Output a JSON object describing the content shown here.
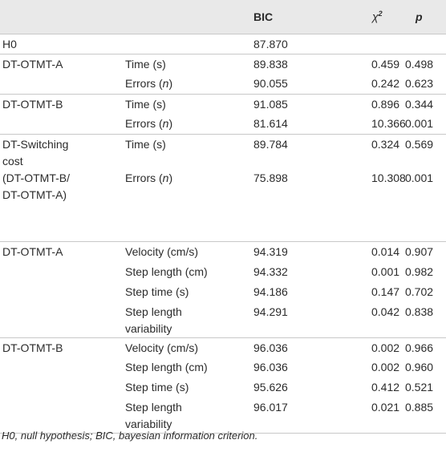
{
  "header": {
    "col1": "",
    "col2": "",
    "bic": "BIC",
    "chi": "χ",
    "chi_sup": "2",
    "p": "p"
  },
  "rows": [
    {
      "label": "H0",
      "measure": "",
      "bic": "87.870",
      "chi2": "",
      "p": ""
    },
    {
      "label": "DT-OTMT-A",
      "measure": "Time (s)",
      "bic": "89.838",
      "chi2": "0.459",
      "p": "0.498"
    },
    {
      "label": "",
      "measure": "Errors (n)",
      "bic": "90.055",
      "chi2": "0.242",
      "p": "0.623"
    },
    {
      "label": "DT-OTMT-B",
      "measure": "Time (s)",
      "bic": "91.085",
      "chi2": "0.896",
      "p": "0.344"
    },
    {
      "label": "",
      "measure": "Errors (n)",
      "bic": "81.614",
      "chi2": "10.366",
      "p": "0.001"
    },
    {
      "label": "DT-Switching cost (DT-OTMT-B/ DT-OTMT-A)",
      "measure": "Time (s)",
      "bic": "89.784",
      "chi2": "0.324",
      "p": "0.569"
    },
    {
      "label": "",
      "measure": "Errors (n)",
      "bic": "75.898",
      "chi2": "10.308",
      "p": "0.001"
    },
    {
      "label": "DT-OTMT-A",
      "measure": "Velocity (cm/s)",
      "bic": "94.319",
      "chi2": "0.014",
      "p": "0.907"
    },
    {
      "label": "",
      "measure": "Step length (cm)",
      "bic": "94.332",
      "chi2": "0.001",
      "p": "0.982"
    },
    {
      "label": "",
      "measure": "Step time (s)",
      "bic": "94.186",
      "chi2": "0.147",
      "p": "0.702"
    },
    {
      "label": "",
      "measure": "Step length variability",
      "bic": "94.291",
      "chi2": "0.042",
      "p": "0.838"
    },
    {
      "label": "DT-OTMT-B",
      "measure": "Velocity (cm/s)",
      "bic": "96.036",
      "chi2": "0.002",
      "p": "0.966"
    },
    {
      "label": "",
      "measure": "Step length (cm)",
      "bic": "96.036",
      "chi2": "0.002",
      "p": "0.960"
    },
    {
      "label": "",
      "measure": "Step time (s)",
      "bic": "95.626",
      "chi2": "0.412",
      "p": "0.521"
    },
    {
      "label": "",
      "measure": "Step length variability",
      "bic": "96.017",
      "chi2": "0.021",
      "p": "0.885"
    }
  ],
  "measure_parts": {
    "errors_prefix": "Errors (",
    "errors_n": "n",
    "errors_suffix": ")"
  },
  "switching_label_lines": [
    "DT-Switching",
    "cost",
    "(DT-OTMT-B/",
    "DT-OTMT-A)"
  ],
  "variability_lines": [
    "Step length",
    "variability"
  ],
  "footnote": "H0, null hypothesis; BIC, bayesian information criterion."
}
